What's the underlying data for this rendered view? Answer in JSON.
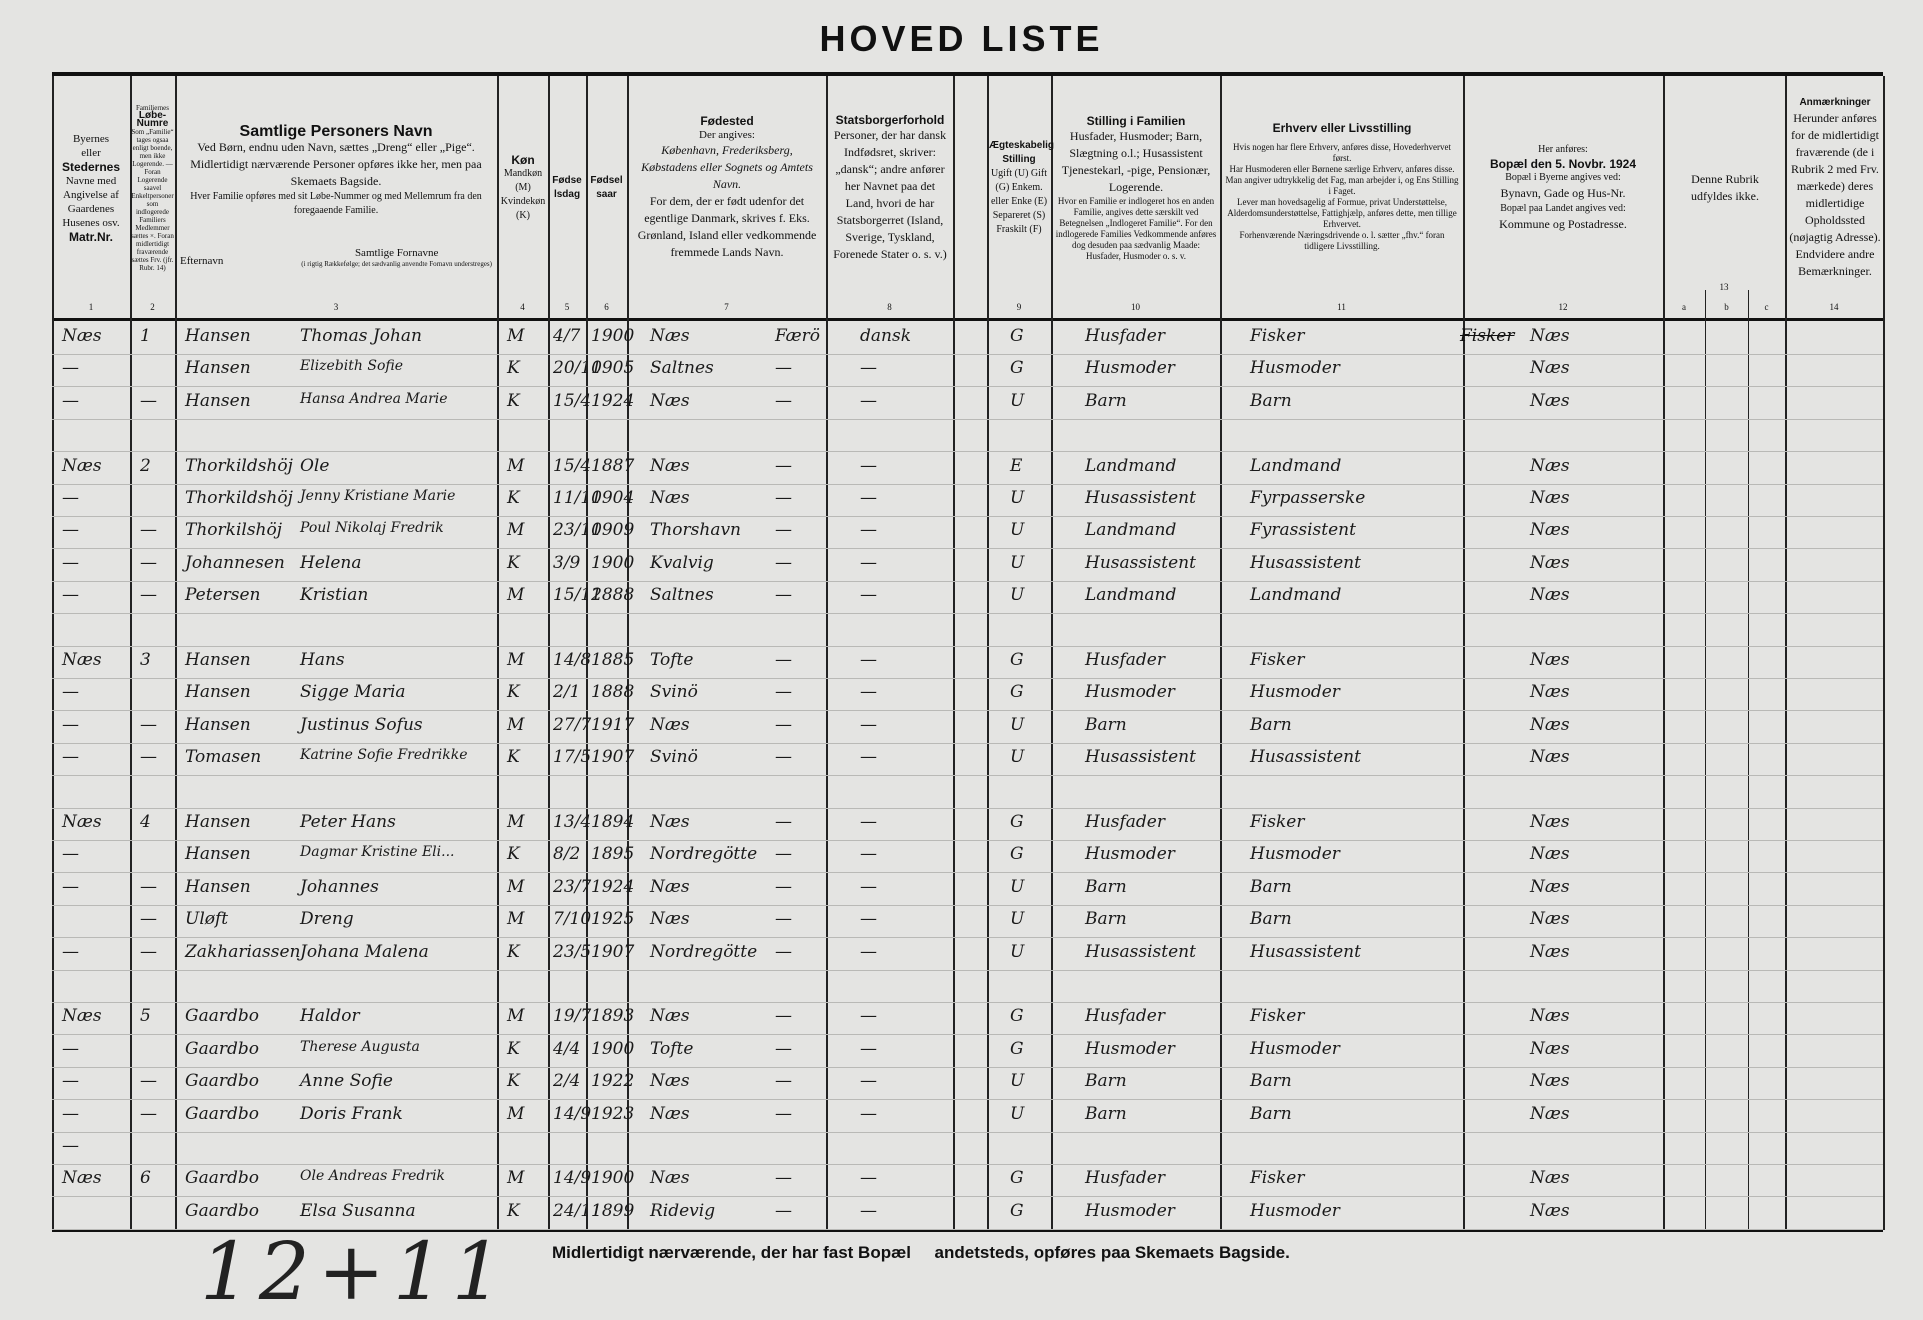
{
  "title": "HOVED LISTE",
  "header": {
    "c1": [
      "Byernes",
      "eller",
      "Stedernes",
      "Navne med",
      "Angivelse af",
      "Gaardenes",
      "Husenes osv.",
      "Matr.Nr."
    ],
    "c2": [
      "Familiernes",
      "Løbe-Numre",
      "Som „Familie“ tages ogsaa enligt boende, men ikke Logerende. — Foran Logerende saavel Enkeltpersoner som indlogerede Familiers Medlemmer sættes ×. Foran midlertidigt fraværende sættes Frv. (jfr. Rubr. 14)"
    ],
    "c3": {
      "title": "Samtlige Personers Navn",
      "l1": "Ved Børn, endnu uden Navn, sættes „Dreng“ eller „Pige“.",
      "l2": "Midlertidigt nærværende Personer opføres ikke her, men paa Skemaets Bagside.",
      "l3": "Hver Familie opføres med sit Løbe-Nummer og med Mellemrum fra den foregaaende Familie.",
      "surname": "Efternavn",
      "forenames": "Samtlige Fornavne",
      "forenames_note": "(i rigtig Rækkefølge; det sædvanlig anvendte Fornavn understreges)"
    },
    "c4": {
      "title": "Køn",
      "l1": "Mandkøn (M)",
      "l2": "Kvindekøn (K)"
    },
    "c5": "Fødselsdag",
    "c6": "Fødselsaar",
    "c7": {
      "title": "Fødested",
      "l1": "Der angives:",
      "l2": "København, Frederiksberg, Købstadens eller Sognets og Amtets Navn.",
      "l3": "For dem, der er født udenfor det egentlige Danmark, skrives f. Eks. Grønland, Island eller vedkommende fremmede Lands Navn."
    },
    "c8": {
      "title": "Statsborgerforhold",
      "l1": "Personer, der har dansk Indfødsret, skriver: „dansk“; andre anfører her Navnet paa det Land, hvori de har Statsborgerret (Island, Sverige, Tyskland, Forenede Stater o. s. v.)"
    },
    "c9": {
      "title": "Ægteskabelig Stilling",
      "l1": "Ugift (U) Gift (G) Enkem. eller Enke (E) Separeret (S) Fraskilt (F)"
    },
    "c10": {
      "title": "Stilling i Familien",
      "l1": "Husfader, Husmoder; Barn, Slægtning o.l.; Husassistent Tjenestekarl, -pige, Pensionær, Logerende.",
      "l2": "Hvor en Familie er indlogeret hos en anden Familie, angives dette særskilt ved Betegnelsen „Indlogeret Familie“. For den indlogerede Families Vedkommende anføres dog desuden paa sædvanlig Maade: Husfader, Husmoder o. s. v."
    },
    "c11": {
      "title": "Erhverv eller Livsstilling",
      "l1": "Hvis nogen har flere Erhverv, anføres disse, Hovederhvervet først.",
      "l2": "Har Husmoderen eller Børnene særlige Erhverv, anføres disse.",
      "l3": "Man angiver udtrykkelig det Fag, man arbejder i, og Ens Stilling i Faget.",
      "l4": "Lever man hovedsagelig af Formue, privat Understøttelse, Alderdomsunderstøttelse, Fattighjælp, anføres dette, men tillige Erhvervet.",
      "l5": "Forhenværende Næringsdrivende o. l. sætter „fhv.“ foran tidligere Livsstilling."
    },
    "c12": {
      "l1": "Her anføres:",
      "title": "Bopæl den 5. Novbr. 1924",
      "l2": "Bopæl i Byerne angives ved:",
      "l3": "Bynavn, Gade og Hus-Nr.",
      "l4": "Bopæl paa Landet angives ved:",
      "l5": "Kommune og Postadresse."
    },
    "c13": {
      "l1": "Denne Rubrik udfyldes ikke.",
      "a": "a",
      "b": "b",
      "c": "c"
    },
    "c14": {
      "title": "Anmærkninger",
      "l1": "Herunder anføres for de midlertidigt fraværende (de i Rubrik 2 med Frv. mærkede) deres midlertidige Opholdssted (nøjagtig Adresse). Endvidere andre Bemærkninger."
    },
    "numbers": [
      "1",
      "2",
      "3",
      "4",
      "5",
      "6",
      "7",
      "8",
      "9",
      "10",
      "11",
      "12",
      "13",
      "14"
    ]
  },
  "rows": [
    {
      "place": "Næs",
      "fam": "1",
      "surname": "Hansen",
      "forenames": "Thomas Johan",
      "sex": "M",
      "day": "4/7",
      "year": "1900",
      "birthplace": "Næs",
      "county": "Færö",
      "citizen": "dansk",
      "marital": "G",
      "position": "Husfader",
      "occupation": "Fisker",
      "residence_struck": "Fisker",
      "residence": "Næs"
    },
    {
      "place": "—",
      "fam": "",
      "surname": "Hansen",
      "forenames": "Elizebith Sofie",
      "sex": "K",
      "day": "20/10",
      "year": "1905",
      "birthplace": "Saltnes",
      "county": "—",
      "citizen": "—",
      "marital": "G",
      "position": "Husmoder",
      "occupation": "Husmoder",
      "residence": "Næs"
    },
    {
      "place": "—",
      "fam": "—",
      "surname": "Hansen",
      "forenames": "Hansa Andrea Marie",
      "sex": "K",
      "day": "15/4",
      "year": "1924",
      "birthplace": "Næs",
      "county": "—",
      "citizen": "—",
      "marital": "U",
      "position": "Barn",
      "occupation": "Barn",
      "residence": "Næs"
    },
    {},
    {
      "place": "Næs",
      "fam": "2",
      "surname": "Thorkildshöj",
      "forenames": "Ole",
      "sex": "M",
      "day": "15/4",
      "year": "1887",
      "birthplace": "Næs",
      "county": "—",
      "citizen": "—",
      "marital": "E",
      "position": "Landmand",
      "occupation": "Landmand",
      "residence": "Næs"
    },
    {
      "place": "—",
      "fam": "",
      "surname": "Thorkildshöj",
      "forenames": "Jenny Kristiane Marie",
      "sex": "K",
      "day": "11/10",
      "year": "1904",
      "birthplace": "Næs",
      "county": "—",
      "citizen": "—",
      "marital": "U",
      "position": "Husassistent",
      "occupation": "Fyrpasserske",
      "residence": "Næs"
    },
    {
      "place": "—",
      "fam": "—",
      "surname": "Thorkilshöj",
      "forenames": "Poul Nikolaj Fredrik",
      "sex": "M",
      "day": "23/10",
      "year": "1909",
      "birthplace": "Thorshavn",
      "county": "—",
      "citizen": "—",
      "marital": "U",
      "position": "Landmand",
      "occupation": "Fyrassistent",
      "residence": "Næs"
    },
    {
      "place": "—",
      "fam": "—",
      "surname": "Johannesen",
      "forenames": "Helena",
      "sex": "K",
      "day": "3/9",
      "year": "1900",
      "birthplace": "Kvalvig",
      "county": "—",
      "citizen": "—",
      "marital": "U",
      "position": "Husassistent",
      "occupation": "Husassistent",
      "residence": "Næs"
    },
    {
      "place": "—",
      "fam": "—",
      "surname": "Petersen",
      "forenames": "Kristian",
      "sex": "M",
      "day": "15/12",
      "year": "1888",
      "birthplace": "Saltnes",
      "county": "—",
      "citizen": "—",
      "marital": "U",
      "position": "Landmand",
      "occupation": "Landmand",
      "residence": "Næs"
    },
    {},
    {
      "place": "Næs",
      "fam": "3",
      "surname": "Hansen",
      "forenames": "Hans",
      "sex": "M",
      "day": "14/8",
      "year": "1885",
      "birthplace": "Tofte",
      "county": "—",
      "citizen": "—",
      "marital": "G",
      "position": "Husfader",
      "occupation": "Fisker",
      "residence": "Næs"
    },
    {
      "place": "—",
      "fam": "",
      "surname": "Hansen",
      "forenames": "Sigge Maria",
      "sex": "K",
      "day": "2/1",
      "year": "1888",
      "birthplace": "Svinö",
      "county": "—",
      "citizen": "—",
      "marital": "G",
      "position": "Husmoder",
      "occupation": "Husmoder",
      "residence": "Næs"
    },
    {
      "place": "—",
      "fam": "—",
      "surname": "Hansen",
      "forenames": "Justinus Sofus",
      "sex": "M",
      "day": "27/7",
      "year": "1917",
      "birthplace": "Næs",
      "county": "—",
      "citizen": "—",
      "marital": "U",
      "position": "Barn",
      "occupation": "Barn",
      "residence": "Næs"
    },
    {
      "place": "—",
      "fam": "—",
      "surname": "Tomasen",
      "forenames": "Katrine Sofie Fredrikke",
      "sex": "K",
      "day": "17/5",
      "year": "1907",
      "birthplace": "Svinö",
      "county": "—",
      "citizen": "—",
      "marital": "U",
      "position": "Husassistent",
      "occupation": "Husassistent",
      "residence": "Næs"
    },
    {},
    {
      "place": "Næs",
      "fam": "4",
      "surname": "Hansen",
      "forenames": "Peter Hans",
      "sex": "M",
      "day": "13/4",
      "year": "1894",
      "birthplace": "Næs",
      "county": "—",
      "citizen": "—",
      "marital": "G",
      "position": "Husfader",
      "occupation": "Fisker",
      "residence": "Næs"
    },
    {
      "place": "—",
      "fam": "",
      "surname": "Hansen",
      "forenames": "Dagmar Kristine Eli...",
      "sex": "K",
      "day": "8/2",
      "year": "1895",
      "birthplace": "Nordregötte",
      "county": "—",
      "citizen": "—",
      "marital": "G",
      "position": "Husmoder",
      "occupation": "Husmoder",
      "residence": "Næs"
    },
    {
      "place": "—",
      "fam": "—",
      "surname": "Hansen",
      "forenames": "Johannes",
      "sex": "M",
      "day": "23/7",
      "year": "1924",
      "birthplace": "Næs",
      "county": "—",
      "citizen": "—",
      "marital": "U",
      "position": "Barn",
      "occupation": "Barn",
      "residence": "Næs"
    },
    {
      "place": "",
      "fam": "—",
      "surname": "Uløft",
      "forenames": "Dreng",
      "sex": "M",
      "day": "7/10",
      "year": "1925",
      "birthplace": "Næs",
      "county": "—",
      "citizen": "—",
      "marital": "U",
      "position": "Barn",
      "occupation": "Barn",
      "residence": "Næs"
    },
    {
      "place": "—",
      "fam": "—",
      "surname": "Zakhariassen",
      "forenames": "Johana Malena",
      "sex": "K",
      "day": "23/5",
      "year": "1907",
      "birthplace": "Nordregötte",
      "county": "—",
      "citizen": "—",
      "marital": "U",
      "position": "Husassistent",
      "occupation": "Husassistent",
      "residence": "Næs"
    },
    {},
    {
      "place": "Næs",
      "fam": "5",
      "surname": "Gaardbo",
      "forenames": "Haldor",
      "sex": "M",
      "day": "19/7",
      "year": "1893",
      "birthplace": "Næs",
      "county": "—",
      "citizen": "—",
      "marital": "G",
      "position": "Husfader",
      "occupation": "Fisker",
      "residence": "Næs"
    },
    {
      "place": "—",
      "fam": "",
      "surname": "Gaardbo",
      "forenames": "Therese Augusta",
      "sex": "K",
      "day": "4/4",
      "year": "1900",
      "birthplace": "Tofte",
      "county": "—",
      "citizen": "—",
      "marital": "G",
      "position": "Husmoder",
      "occupation": "Husmoder",
      "residence": "Næs"
    },
    {
      "place": "—",
      "fam": "—",
      "surname": "Gaardbo",
      "forenames": "Anne Sofie",
      "sex": "K",
      "day": "2/4",
      "year": "1922",
      "birthplace": "Næs",
      "county": "—",
      "citizen": "—",
      "marital": "U",
      "position": "Barn",
      "occupation": "Barn",
      "residence": "Næs"
    },
    {
      "place": "—",
      "fam": "—",
      "surname": "Gaardbo",
      "forenames": "Doris Frank",
      "sex": "M",
      "day": "14/9",
      "year": "1923",
      "birthplace": "Næs",
      "county": "—",
      "citizen": "—",
      "marital": "U",
      "position": "Barn",
      "occupation": "Barn",
      "residence": "Næs"
    },
    {
      "place": "—"
    },
    {
      "place": "Næs",
      "fam": "6",
      "surname": "Gaardbo",
      "forenames": "Ole Andreas Fredrik",
      "sex": "M",
      "day": "14/9",
      "year": "1900",
      "birthplace": "Næs",
      "county": "—",
      "citizen": "—",
      "marital": "G",
      "position": "Husfader",
      "occupation": "Fisker",
      "residence": "Næs"
    },
    {
      "place": "",
      "fam": "",
      "surname": "Gaardbo",
      "forenames": "Elsa Susanna",
      "sex": "K",
      "day": "24/11",
      "year": "1899",
      "birthplace": "Ridevig",
      "county": "—",
      "citizen": "—",
      "marital": "G",
      "position": "Husmoder",
      "occupation": "Husmoder",
      "residence": "Næs"
    }
  ],
  "footer": {
    "text": "Midlertidigt nærværende, der har fast Bopæl     andetsteds, opføres paa Skemaets Bagside.",
    "tally": "12+11"
  }
}
